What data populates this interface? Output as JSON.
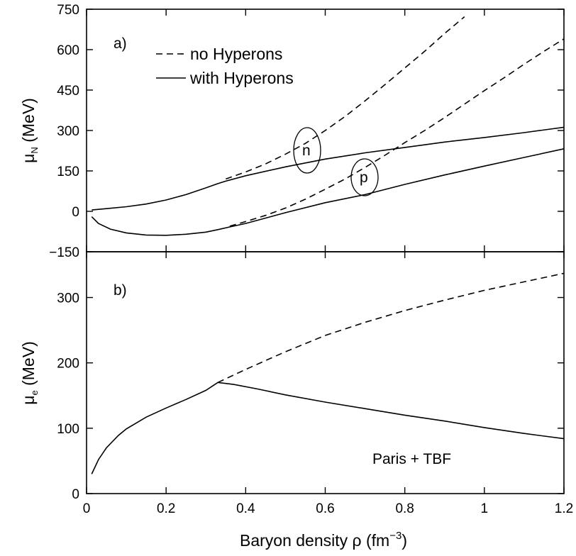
{
  "chart_data": [
    {
      "type": "line",
      "panel_label": "a)",
      "ylabel_main": "μ",
      "ylabel_sub": "N",
      "ylabel_unit": " (MeV)",
      "xlim": [
        0,
        1.2
      ],
      "ylim": [
        -150,
        750
      ],
      "yticks": [
        -150,
        0,
        150,
        300,
        450,
        600,
        750
      ],
      "yticklabels": [
        "−150",
        "0",
        "150",
        "300",
        "450",
        "600",
        "750"
      ],
      "legend": [
        {
          "name": "no Hyperons",
          "style": "dashed"
        },
        {
          "name": "with Hyperons",
          "style": "solid"
        }
      ],
      "legend_position": "top-left",
      "annotations": [
        {
          "text": "n",
          "x": 0.555,
          "y": 225
        },
        {
          "text": "p",
          "x": 0.703,
          "y": 115
        }
      ],
      "series": [
        {
          "name": "no Hyperons",
          "style": "dashed",
          "particle": "n",
          "x": [
            0.35,
            0.4,
            0.45,
            0.5,
            0.55,
            0.6,
            0.65,
            0.7,
            0.75,
            0.8,
            0.85,
            0.9,
            0.95
          ],
          "y": [
            120,
            146,
            176,
            212,
            252,
            300,
            352,
            410,
            470,
            532,
            594,
            660,
            722
          ]
        },
        {
          "name": "no Hyperons",
          "style": "dashed",
          "particle": "p",
          "x": [
            0.36,
            0.4,
            0.45,
            0.5,
            0.55,
            0.6,
            0.65,
            0.7,
            0.75,
            0.8,
            0.85,
            0.9,
            0.95,
            1.0,
            1.05,
            1.1,
            1.15,
            1.2
          ],
          "y": [
            -55,
            -38,
            -15,
            12,
            45,
            82,
            120,
            163,
            208,
            255,
            300,
            348,
            398,
            448,
            496,
            546,
            594,
            640
          ]
        },
        {
          "name": "with Hyperons",
          "style": "solid",
          "particle": "n",
          "x": [
            0.013,
            0.05,
            0.1,
            0.15,
            0.2,
            0.25,
            0.3,
            0.33,
            0.35,
            0.4,
            0.5,
            0.6,
            0.7,
            0.8,
            0.9,
            1.0,
            1.1,
            1.2
          ],
          "y": [
            5,
            10,
            17,
            27,
            42,
            62,
            87,
            103,
            112,
            132,
            165,
            194,
            217,
            237,
            257,
            274,
            292,
            312
          ]
        },
        {
          "name": "with Hyperons",
          "style": "solid",
          "particle": "p",
          "x": [
            0.013,
            0.03,
            0.06,
            0.1,
            0.15,
            0.2,
            0.25,
            0.3,
            0.33,
            0.36,
            0.4,
            0.45,
            0.5,
            0.6,
            0.7,
            0.8,
            0.9,
            1.0,
            1.1,
            1.2
          ],
          "y": [
            -20,
            -45,
            -66,
            -80,
            -88,
            -89,
            -85,
            -77,
            -68,
            -58,
            -45,
            -25,
            -5,
            32,
            62,
            100,
            135,
            168,
            200,
            232
          ]
        }
      ]
    },
    {
      "type": "line",
      "panel_label": "b)",
      "ylabel_main": "μ",
      "ylabel_sub": "e",
      "ylabel_unit": " (MeV)",
      "xlabel": "Baryon density ρ (fm",
      "xlabel_sup": "−3",
      "xlabel_end": ")",
      "xlim": [
        0,
        1.2
      ],
      "ylim": [
        0,
        370
      ],
      "xticks": [
        0,
        0.2,
        0.4,
        0.6,
        0.8,
        1.0,
        1.2
      ],
      "xticklabels": [
        "0",
        "0.2",
        "0.4",
        "0.6",
        "0.8",
        "1",
        "1.2"
      ],
      "yticks": [
        0,
        100,
        200,
        300
      ],
      "yticklabels": [
        "0",
        "100",
        "200",
        "300"
      ],
      "annotation": "Paris + TBF",
      "series": [
        {
          "name": "no Hyperons",
          "style": "dashed",
          "x": [
            0.33,
            0.4,
            0.5,
            0.6,
            0.7,
            0.8,
            0.9,
            1.0,
            1.1,
            1.2
          ],
          "y": [
            170,
            190,
            217,
            242,
            262,
            280,
            296,
            311,
            324,
            337
          ]
        },
        {
          "name": "with Hyperons",
          "style": "solid",
          "x": [
            0.013,
            0.03,
            0.05,
            0.08,
            0.1,
            0.15,
            0.2,
            0.25,
            0.3,
            0.33,
            0.37,
            0.43,
            0.5,
            0.6,
            0.7,
            0.8,
            0.9,
            1.0,
            1.1,
            1.2
          ],
          "y": [
            30,
            52,
            70,
            89,
            99,
            117,
            131,
            144,
            158,
            170,
            167,
            160,
            151,
            140,
            130,
            120,
            111,
            101,
            92,
            84
          ]
        }
      ]
    }
  ]
}
